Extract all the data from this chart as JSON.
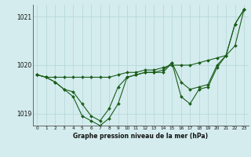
{
  "background_color": "#d4ecee",
  "grid_color": "#b8d8da",
  "line_color": "#1a5e1a",
  "xlabel": "Graphe pression niveau de la mer (hPa)",
  "ylim": [
    1018.75,
    1021.25
  ],
  "xlim": [
    -0.5,
    23.5
  ],
  "yticks": [
    1019,
    1020,
    1021
  ],
  "ytick_labels": [
    "1019",
    "1020",
    "1021"
  ],
  "xticks": [
    0,
    1,
    2,
    3,
    4,
    5,
    6,
    7,
    8,
    9,
    10,
    11,
    12,
    13,
    14,
    15,
    16,
    17,
    18,
    19,
    20,
    21,
    22,
    23
  ],
  "series": {
    "line1": [
      1019.8,
      1019.75,
      1019.75,
      1019.75,
      1019.75,
      1019.75,
      1019.75,
      1019.75,
      1019.75,
      1019.8,
      1019.85,
      1019.85,
      1019.9,
      1019.9,
      1019.95,
      1020.0,
      1020.0,
      1020.0,
      1020.05,
      1020.1,
      1020.15,
      1020.2,
      1020.4,
      1021.15
    ],
    "line2": [
      1019.8,
      1019.75,
      1019.65,
      1019.5,
      1019.45,
      1019.2,
      1018.95,
      1018.85,
      1019.1,
      1019.55,
      1019.75,
      1019.8,
      1019.85,
      1019.85,
      1019.9,
      1020.05,
      1019.65,
      1019.5,
      1019.55,
      1019.6,
      1020.0,
      1020.2,
      1020.85,
      1021.15
    ],
    "line3": [
      1019.8,
      1019.75,
      1019.65,
      1019.5,
      1019.35,
      1018.95,
      1018.85,
      1018.75,
      1018.9,
      1019.2,
      1019.75,
      1019.8,
      1019.85,
      1019.85,
      1019.85,
      1020.05,
      1019.35,
      1019.2,
      1019.5,
      1019.55,
      1019.95,
      1020.2,
      1020.85,
      1021.15
    ]
  }
}
